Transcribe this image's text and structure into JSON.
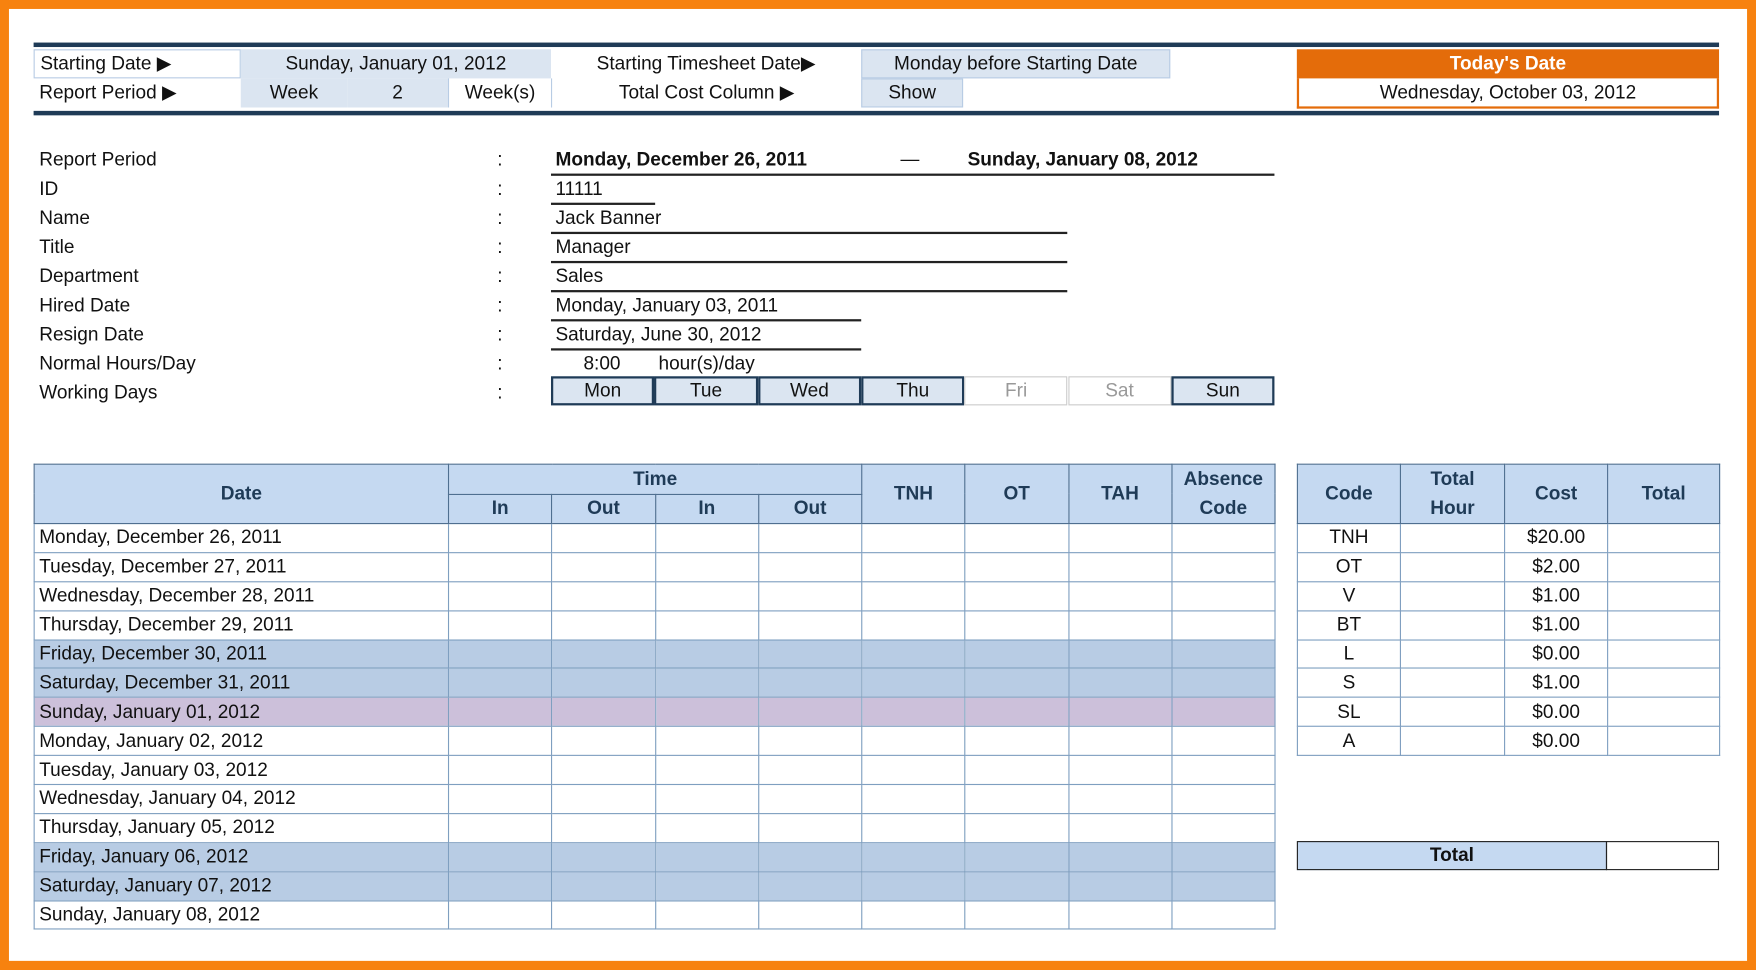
{
  "settings": {
    "starting_date_label": "Starting Date ▶",
    "starting_date_value": "Sunday, January 01, 2012",
    "starting_timesheet_label": "Starting Timesheet Date▶",
    "starting_timesheet_value": "Monday before Starting Date",
    "report_period_label": "Report Period ▶",
    "report_period_unit": "Week",
    "report_period_count": "2",
    "report_period_suffix": "Week(s)",
    "total_cost_label": "Total Cost Column ▶",
    "total_cost_value": "Show"
  },
  "today": {
    "label": "Today's Date",
    "value": "Wednesday, October 03, 2012",
    "accent": "#e46c0a"
  },
  "info": {
    "colon": ":",
    "report_period": {
      "label": "Report Period",
      "start": "Monday, December 26, 2011",
      "dash": "—",
      "end": "Sunday, January 08, 2012"
    },
    "id": {
      "label": "ID",
      "value": "11111"
    },
    "name": {
      "label": "Name",
      "value": "Jack Banner"
    },
    "title": {
      "label": "Title",
      "value": "Manager"
    },
    "department": {
      "label": "Department",
      "value": "Sales"
    },
    "hired": {
      "label": "Hired Date",
      "value": "Monday, January 03, 2011"
    },
    "resign": {
      "label": "Resign Date",
      "value": "Saturday, June 30, 2012"
    },
    "hours": {
      "label": "Normal Hours/Day",
      "value": "8:00",
      "unit": "hour(s)/day"
    },
    "working_days": {
      "label": "Working Days",
      "days": [
        {
          "name": "Mon",
          "active": true
        },
        {
          "name": "Tue",
          "active": true
        },
        {
          "name": "Wed",
          "active": true
        },
        {
          "name": "Thu",
          "active": true
        },
        {
          "name": "Fri",
          "active": false
        },
        {
          "name": "Sat",
          "active": false
        },
        {
          "name": "Sun",
          "active": true
        }
      ]
    }
  },
  "timesheet": {
    "headers": {
      "date": "Date",
      "time": "Time",
      "in1": "In",
      "out1": "Out",
      "in2": "In",
      "out2": "Out",
      "tnh": "TNH",
      "ot": "OT",
      "tah": "TAH",
      "absence": "Absence Code"
    },
    "rows": [
      {
        "date": "Monday, December 26, 2011",
        "type": "work"
      },
      {
        "date": "Tuesday, December 27, 2011",
        "type": "work"
      },
      {
        "date": "Wednesday, December 28, 2011",
        "type": "work"
      },
      {
        "date": "Thursday, December 29, 2011",
        "type": "work"
      },
      {
        "date": "Friday, December 30, 2011",
        "type": "off"
      },
      {
        "date": "Saturday, December 31, 2011",
        "type": "off"
      },
      {
        "date": "Sunday, January 01, 2012",
        "type": "holiday"
      },
      {
        "date": "Monday, January 02, 2012",
        "type": "work"
      },
      {
        "date": "Tuesday, January 03, 2012",
        "type": "work"
      },
      {
        "date": "Wednesday, January 04, 2012",
        "type": "work"
      },
      {
        "date": "Thursday, January 05, 2012",
        "type": "work"
      },
      {
        "date": "Friday, January 06, 2012",
        "type": "off"
      },
      {
        "date": "Saturday, January 07, 2012",
        "type": "off"
      },
      {
        "date": "Sunday, January 08, 2012",
        "type": "work"
      }
    ],
    "colors": {
      "off": "#b8cce4",
      "holiday": "#ccc0da"
    }
  },
  "costs": {
    "headers": {
      "code": "Code",
      "total_hour": "Total Hour",
      "cost": "Cost",
      "total": "Total"
    },
    "rows": [
      {
        "code": "TNH",
        "cost": "$20.00"
      },
      {
        "code": "OT",
        "cost": "$2.00"
      },
      {
        "code": "V",
        "cost": "$1.00"
      },
      {
        "code": "BT",
        "cost": "$1.00"
      },
      {
        "code": "L",
        "cost": "$0.00"
      },
      {
        "code": "S",
        "cost": "$1.00"
      },
      {
        "code": "SL",
        "cost": "$0.00"
      },
      {
        "code": "A",
        "cost": "$0.00"
      }
    ],
    "grand_total_label": "Total"
  }
}
